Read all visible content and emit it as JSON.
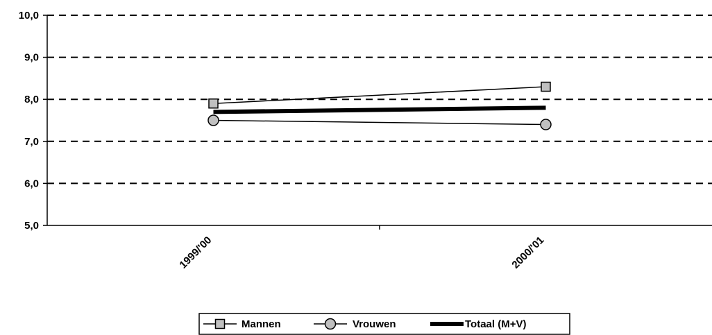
{
  "chart_data": {
    "type": "line",
    "categories": [
      "1999/'00",
      "2000/'01"
    ],
    "series": [
      {
        "name": "Mannen",
        "values": [
          7.9,
          8.3
        ],
        "marker": "square",
        "color": "#000000",
        "marker_fill": "#c0c0c0"
      },
      {
        "name": "Vrouwen",
        "values": [
          7.5,
          7.4
        ],
        "marker": "circle",
        "color": "#000000",
        "marker_fill": "#c0c0c0"
      },
      {
        "name": "Totaal (M+V)",
        "values": [
          7.7,
          7.8
        ],
        "marker": "none",
        "color": "#000000",
        "thick": true
      }
    ],
    "ylim": [
      5.0,
      10.0
    ],
    "yticks": [
      "5,0",
      "6,0",
      "7,0",
      "8,0",
      "9,0",
      "10,0"
    ],
    "grid": "dashed horizontal",
    "legend": "bottom",
    "title": "",
    "xlabel": "",
    "ylabel": ""
  }
}
